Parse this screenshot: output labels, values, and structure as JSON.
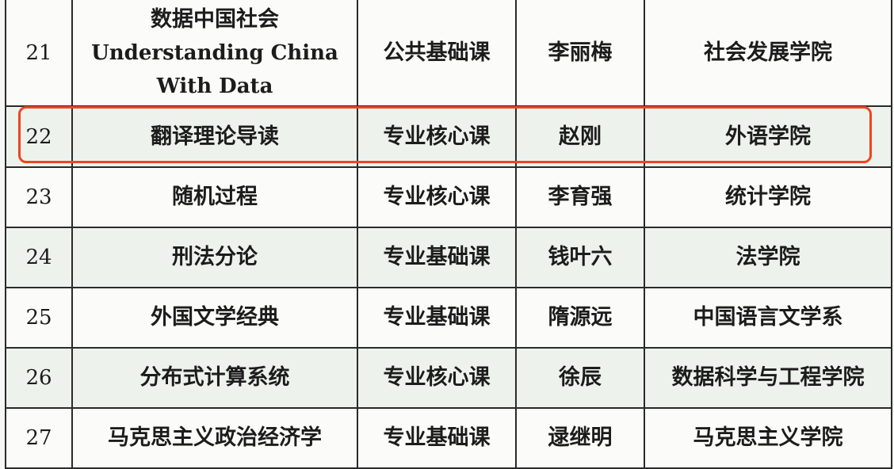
{
  "rows": [
    {
      "no": "21",
      "name": "数据中国社会",
      "name_en_1": "Understanding China",
      "name_en_2": "With Data",
      "type": "公共基础课",
      "teacher": "李丽梅",
      "college": "社会发展学院"
    },
    {
      "no": "22",
      "name": "翻译理论导读",
      "type": "专业核心课",
      "teacher": "赵刚",
      "college": "外语学院"
    },
    {
      "no": "23",
      "name": "随机过程",
      "type": "专业核心课",
      "teacher": "李育强",
      "college": "统计学院"
    },
    {
      "no": "24",
      "name": "刑法分论",
      "type": "专业基础课",
      "teacher": "钱叶六",
      "college": "法学院"
    },
    {
      "no": "25",
      "name": "外国文学经典",
      "type": "专业基础课",
      "teacher": "隋源远",
      "college": "中国语言文学系"
    },
    {
      "no": "26",
      "name": "分布式计算系统",
      "type": "专业核心课",
      "teacher": "徐辰",
      "college": "数据科学与工程学院"
    },
    {
      "no": "27",
      "name": "马克思主义政治经济学",
      "type": "专业基础课",
      "teacher": "逯继明",
      "college": "马克思主义学院"
    }
  ],
  "highlight_color": "#ee4422",
  "alt_row_color": "#eef2ec"
}
